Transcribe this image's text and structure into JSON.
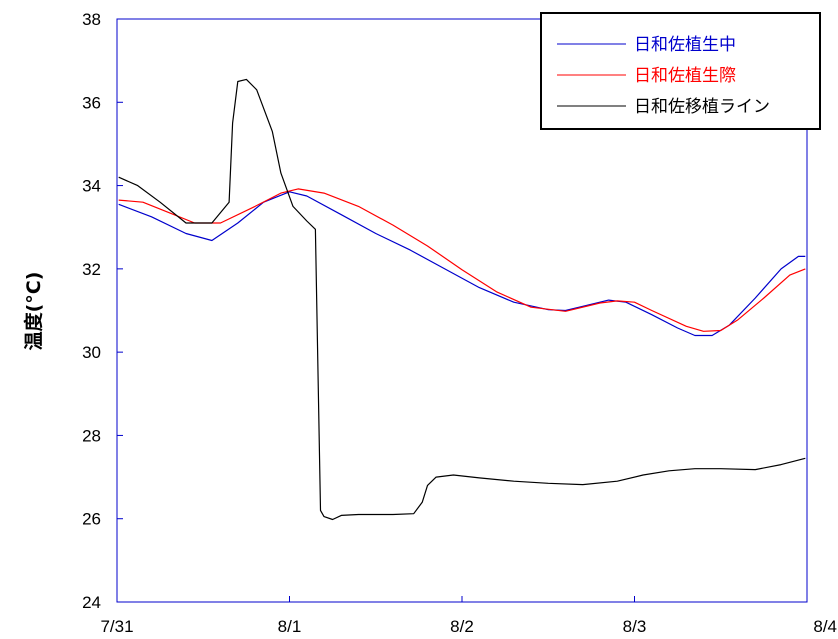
{
  "chart_data": {
    "type": "line",
    "title": "",
    "xlabel": "",
    "ylabel": "温度(°C)",
    "xlim": [
      0,
      4
    ],
    "ylim": [
      24,
      38
    ],
    "x_tick_labels": [
      "7/31",
      "8/1",
      "8/2",
      "8/3",
      "8/4"
    ],
    "y_ticks": [
      24,
      26,
      28,
      30,
      32,
      34,
      36,
      38
    ],
    "y_tick_labels": [
      "24",
      "26",
      "28",
      "30",
      "32",
      "34",
      "36",
      "38"
    ],
    "grid": false,
    "legend_position": "top-right",
    "series": [
      {
        "name": "日和佐植生中",
        "color": "#0000cc",
        "x": [
          0.01,
          0.2,
          0.4,
          0.55,
          0.7,
          0.85,
          1.0,
          1.1,
          1.3,
          1.5,
          1.7,
          1.9,
          2.1,
          2.3,
          2.5,
          2.6,
          2.7,
          2.85,
          2.95,
          3.1,
          3.25,
          3.35,
          3.45,
          3.55,
          3.7,
          3.85,
          3.95,
          3.99
        ],
        "y": [
          33.55,
          33.25,
          32.85,
          32.68,
          33.1,
          33.6,
          33.85,
          33.75,
          33.3,
          32.85,
          32.45,
          32.0,
          31.55,
          31.2,
          31.02,
          31.0,
          31.1,
          31.25,
          31.2,
          30.9,
          30.58,
          30.4,
          30.4,
          30.65,
          31.3,
          32.0,
          32.3,
          32.3
        ]
      },
      {
        "name": "日和佐植生際",
        "color": "#ff0000",
        "x": [
          0.01,
          0.15,
          0.3,
          0.45,
          0.6,
          0.8,
          0.95,
          1.05,
          1.2,
          1.4,
          1.6,
          1.8,
          2.0,
          2.2,
          2.4,
          2.6,
          2.8,
          2.9,
          3.0,
          3.1,
          3.3,
          3.4,
          3.5,
          3.6,
          3.75,
          3.9,
          3.99
        ],
        "y": [
          33.65,
          33.6,
          33.35,
          33.1,
          33.1,
          33.5,
          33.82,
          33.92,
          33.82,
          33.5,
          33.05,
          32.55,
          31.98,
          31.45,
          31.08,
          30.98,
          31.18,
          31.23,
          31.2,
          31.0,
          30.62,
          30.5,
          30.52,
          30.78,
          31.3,
          31.85,
          32.0
        ]
      },
      {
        "name": "日和佐移植ライン",
        "color": "#000000",
        "x": [
          0.01,
          0.12,
          0.25,
          0.4,
          0.55,
          0.65,
          0.67,
          0.7,
          0.75,
          0.81,
          0.9,
          0.95,
          1.02,
          1.1,
          1.15,
          1.18,
          1.2,
          1.25,
          1.3,
          1.4,
          1.6,
          1.72,
          1.77,
          1.8,
          1.85,
          1.95,
          2.1,
          2.3,
          2.5,
          2.7,
          2.9,
          3.05,
          3.2,
          3.35,
          3.5,
          3.7,
          3.85,
          3.99
        ],
        "y": [
          34.2,
          34.0,
          33.6,
          33.1,
          33.1,
          33.6,
          35.5,
          36.5,
          36.55,
          36.3,
          35.3,
          34.3,
          33.5,
          33.15,
          32.95,
          26.2,
          26.05,
          25.98,
          26.08,
          26.1,
          26.1,
          26.12,
          26.4,
          26.8,
          27.0,
          27.05,
          26.98,
          26.9,
          26.85,
          26.82,
          26.9,
          27.05,
          27.15,
          27.2,
          27.2,
          27.18,
          27.3,
          27.45
        ]
      }
    ]
  }
}
